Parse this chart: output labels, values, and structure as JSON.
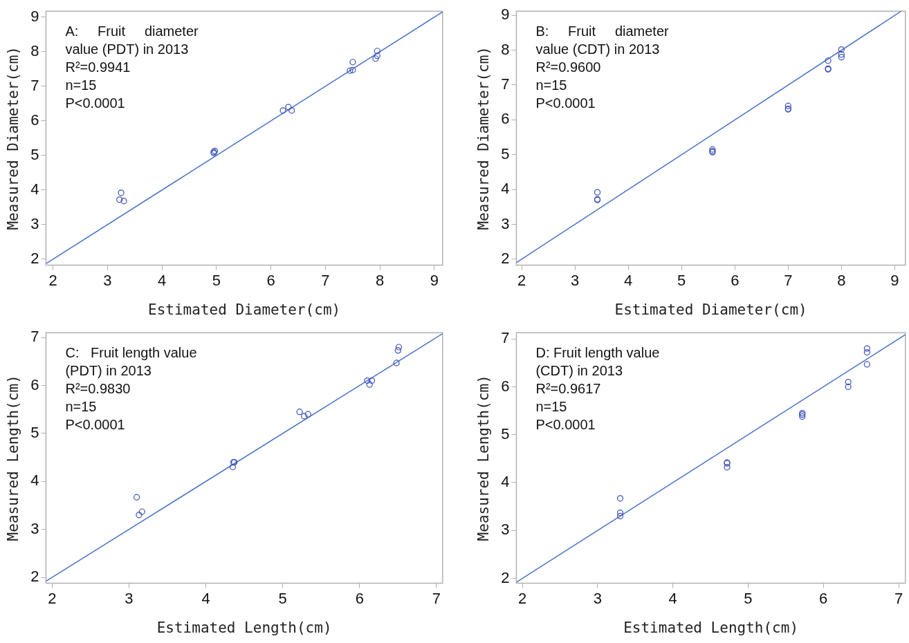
{
  "chart_data": [
    {
      "type": "scatter",
      "xlabel": "Estimated Diameter(cm)",
      "ylabel": "Measured Diameter(cm)",
      "annotations": [
        "A:     Fruit     diameter",
        "value (PDT) in 2013",
        "R²=0.9941",
        "n=15",
        "P<0.0001"
      ],
      "xlim": [
        1.87,
        9.15
      ],
      "ylim": [
        1.83,
        9.17
      ],
      "xticks": [
        2,
        3,
        4,
        5,
        6,
        7,
        8,
        9
      ],
      "yticks": [
        2,
        3,
        4,
        5,
        6,
        7,
        8,
        9
      ],
      "grid": false,
      "legend": false,
      "marker": "circle",
      "series": [
        {
          "color": "#3a4fb8",
          "x": [
            3.22,
            3.25,
            3.3,
            4.95,
            4.97,
            4.95,
            6.22,
            6.32,
            6.38,
            7.45,
            7.5,
            7.5,
            7.92,
            7.95,
            7.95
          ],
          "values": [
            3.72,
            3.92,
            3.68,
            5.1,
            5.13,
            5.07,
            6.3,
            6.4,
            6.3,
            7.45,
            7.47,
            7.7,
            7.8,
            7.88,
            8.02
          ]
        },
        {
          "type": "line",
          "color": "#4a72c8",
          "x": [
            1.87,
            9.15
          ],
          "values": [
            1.87,
            9.15
          ],
          "marker": "none"
        }
      ]
    },
    {
      "type": "scatter",
      "xlabel": "Estimated Diameter(cm)",
      "ylabel": "Measured Diameter(cm)",
      "annotations": [
        "B:     Fruit     diameter",
        "value (CDT) in 2013",
        "R²=0.9600",
        "n=15",
        "P<0.0001"
      ],
      "xlim": [
        1.9,
        9.2
      ],
      "ylim": [
        1.83,
        9.12
      ],
      "xticks": [
        2,
        3,
        4,
        5,
        6,
        7,
        8,
        9
      ],
      "yticks": [
        2,
        3,
        4,
        5,
        6,
        7,
        8,
        9
      ],
      "grid": false,
      "legend": false,
      "marker": "circle",
      "series": [
        {
          "color": "#3a4fb8",
          "x": [
            3.42,
            3.42,
            3.42,
            5.58,
            5.58,
            5.58,
            7.0,
            7.0,
            7.0,
            7.75,
            7.75,
            7.75,
            8.0,
            8.0,
            8.0
          ],
          "values": [
            3.92,
            3.72,
            3.7,
            5.15,
            5.1,
            5.07,
            6.4,
            6.3,
            6.32,
            7.7,
            7.45,
            7.47,
            8.02,
            7.88,
            7.8
          ]
        },
        {
          "type": "line",
          "color": "#4a72c8",
          "x": [
            1.9,
            9.12
          ],
          "values": [
            1.9,
            9.12
          ],
          "marker": "none"
        }
      ]
    },
    {
      "type": "scatter",
      "xlabel": "Estimated Length(cm)",
      "ylabel": "Measured Length(cm)",
      "annotations": [
        "C:   Fruit length value",
        "(PDT) in 2013",
        "R²=0.9830",
        "n=15",
        "P<0.0001"
      ],
      "xlim": [
        1.92,
        7.08
      ],
      "ylim": [
        1.88,
        7.1
      ],
      "xticks": [
        2,
        3,
        4,
        5,
        6,
        7
      ],
      "yticks": [
        2,
        3,
        4,
        5,
        6,
        7
      ],
      "grid": false,
      "legend": false,
      "marker": "circle",
      "series": [
        {
          "color": "#3a4fb8",
          "x": [
            3.1,
            3.13,
            3.17,
            4.35,
            4.36,
            4.37,
            5.22,
            5.28,
            5.33,
            6.1,
            6.13,
            6.16,
            6.48,
            6.5,
            6.51
          ],
          "values": [
            3.67,
            3.3,
            3.37,
            4.3,
            4.4,
            4.4,
            5.45,
            5.36,
            5.4,
            6.1,
            6.02,
            6.1,
            6.47,
            6.73,
            6.8
          ]
        },
        {
          "type": "line",
          "color": "#4a72c8",
          "x": [
            1.92,
            7.08
          ],
          "values": [
            1.92,
            7.08
          ],
          "marker": "none"
        }
      ]
    },
    {
      "type": "scatter",
      "xlabel": "Estimated Length(cm)",
      "ylabel": "Measured Length(cm)",
      "annotations": [
        "D: Fruit length value",
        "(CDT) in 2013",
        "R²=0.9617",
        "n=15",
        "P<0.0001"
      ],
      "xlim": [
        1.92,
        7.09
      ],
      "ylim": [
        1.9,
        7.13
      ],
      "xticks": [
        2,
        3,
        4,
        5,
        6,
        7
      ],
      "yticks": [
        2,
        3,
        4,
        5,
        6,
        7
      ],
      "grid": false,
      "legend": false,
      "marker": "circle",
      "series": [
        {
          "color": "#3a4fb8",
          "x": [
            3.3,
            3.3,
            3.3,
            4.72,
            4.72,
            4.72,
            5.72,
            5.72,
            5.72,
            6.33,
            6.33,
            6.58,
            6.58,
            6.58
          ],
          "values": [
            3.67,
            3.37,
            3.3,
            4.42,
            4.4,
            4.32,
            5.45,
            5.42,
            5.38,
            6.1,
            6.0,
            6.8,
            6.72,
            6.47
          ]
        },
        {
          "type": "line",
          "color": "#4a72c8",
          "x": [
            1.92,
            7.09
          ],
          "values": [
            1.92,
            7.09
          ],
          "marker": "none"
        }
      ]
    }
  ]
}
